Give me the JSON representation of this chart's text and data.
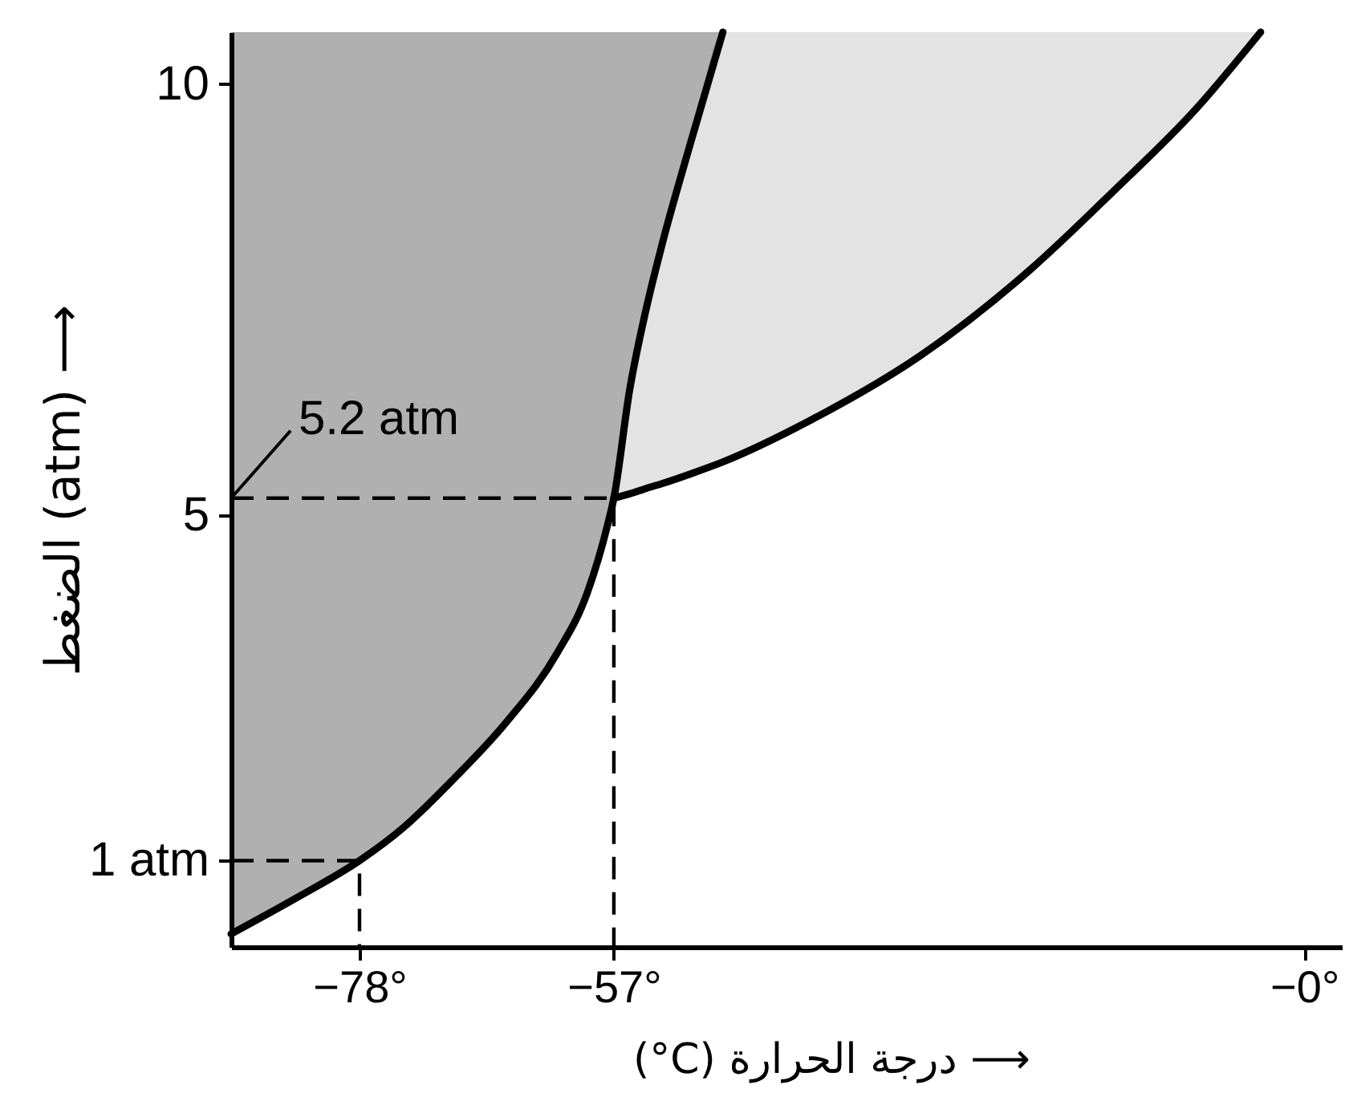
{
  "chart_data": {
    "type": "line",
    "xlabel": "(°C) درجة الحرارة ⟶",
    "ylabel": "الضغط (atm) ⟶",
    "xlim": [
      -88.6,
      3.1
    ],
    "ylim": [
      0,
      10.6
    ],
    "xticks": [
      {
        "value": -78,
        "label": "−78°"
      },
      {
        "value": -57,
        "label": "−57°"
      },
      {
        "value": 0,
        "label": "−0°"
      }
    ],
    "yticks": [
      {
        "value": 1,
        "label": "1 atm"
      },
      5,
      10
    ],
    "annotations": [
      {
        "text": "5.2 atm",
        "x": -88.6,
        "y": 5.2
      }
    ],
    "series": [
      {
        "color": "#000000",
        "x": [
          -88.6,
          -82.8,
          -78,
          -74.4,
          -70.2,
          -65.9,
          -61.7,
          -59.2,
          -57.5,
          -57,
          -55.7,
          -54.4,
          -53.0,
          -50.7,
          -48.0
        ],
        "values": [
          0.15,
          0.6,
          1,
          1.38,
          1.95,
          2.6,
          3.4,
          4.1,
          4.9,
          5.2,
          6.45,
          7.35,
          8.15,
          9.3,
          10.6
        ],
        "lower": [
          0.15,
          0.6,
          1,
          1.38,
          1.95,
          2.6,
          3.4,
          4.1,
          4.9,
          5.2,
          6.45,
          7.35,
          8.15,
          9.3,
          10.6
        ],
        "upper": [
          10.6,
          10.6,
          10.6,
          10.6,
          10.6,
          10.6,
          10.6,
          10.6,
          10.6,
          10.6,
          10.6,
          10.6,
          10.6,
          10.6,
          10.6
        ]
      },
      {
        "color": "#000000",
        "x": [
          -57,
          -55.7,
          -54.4,
          -53.0,
          -50.7,
          -48.0,
          -40.8,
          -31.7,
          -22.6,
          -15.8,
          -9.0,
          -3.6
        ],
        "values": [
          5.2,
          5.25,
          5.31,
          5.37,
          5.48,
          5.62,
          6.1,
          6.85,
          7.85,
          8.75,
          9.7,
          10.6
        ],
        "lower": [
          5.2,
          5.25,
          5.31,
          5.37,
          5.48,
          5.62,
          6.1,
          6.85,
          7.85,
          8.75,
          9.7,
          10.6
        ],
        "upper": [
          5.2,
          6.45,
          7.35,
          8.15,
          9.3,
          10.6,
          10.6,
          10.6,
          10.6,
          10.6,
          10.6,
          10.6
        ]
      },
      {
        "color": "#000000",
        "line_style": "dashed",
        "x": [
          -88.6,
          -57,
          -57
        ],
        "values": [
          5.2,
          5.2,
          0
        ]
      },
      {
        "color": "#000000",
        "line_style": "dashed",
        "x": [
          -88.6,
          -78,
          -78
        ],
        "values": [
          1,
          1,
          0
        ]
      }
    ]
  }
}
